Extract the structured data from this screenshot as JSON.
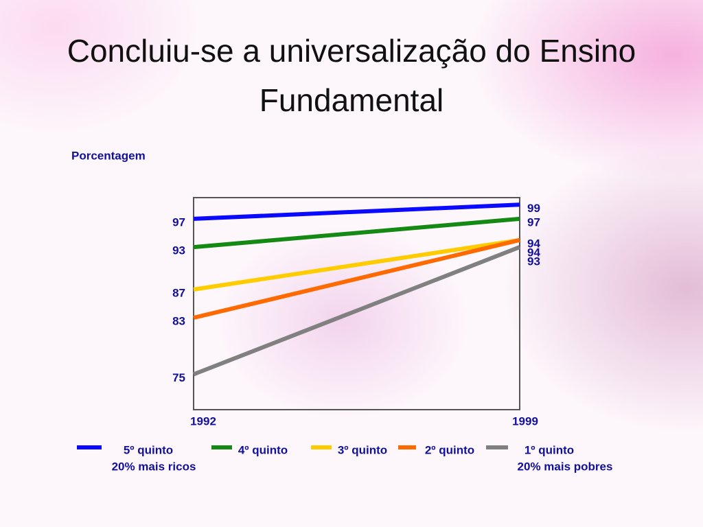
{
  "chart_data": {
    "type": "line",
    "title": "Concluiu-se a universalização do Ensino Fundamental",
    "y_label": "Porcentagem",
    "categories": [
      "1992",
      "1999"
    ],
    "ylim": [
      70,
      100
    ],
    "series": [
      {
        "name": "5º quinto",
        "color": "#0a0aff",
        "values": [
          97,
          99
        ]
      },
      {
        "name": "4º quinto",
        "color": "#148a14",
        "values": [
          93,
          97
        ]
      },
      {
        "name": "3º quinto",
        "color": "#ffcc00",
        "values": [
          87,
          94
        ]
      },
      {
        "name": "2º quinto",
        "color": "#ff6a00",
        "values": [
          83,
          94
        ]
      },
      {
        "name": "1º quinto",
        "color": "#808080",
        "values": [
          75,
          93
        ]
      }
    ],
    "annotations": [
      "20% mais ricos",
      "20% mais pobres"
    ]
  }
}
